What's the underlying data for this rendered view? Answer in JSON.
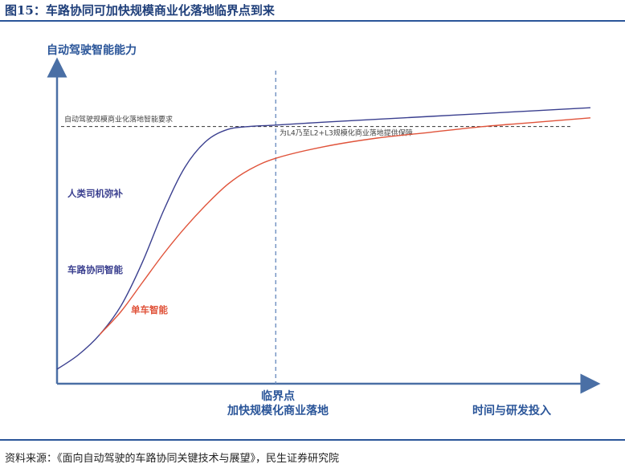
{
  "header": {
    "title": "图15：车路协同可加快规模商业化落地临界点到来"
  },
  "footer": {
    "source": "资料来源：《面向自动驾驶的车路协同关键技术与展望》，民生证券研究院"
  },
  "colors": {
    "axis": "#4a6fa5",
    "vehicle_road": "#3a3f8f",
    "single_vehicle": "#e0533a",
    "annotation_label": "#3a3f8f",
    "single_label": "#e0533a",
    "threshold_line": "#333333"
  },
  "chart_data": {
    "type": "line",
    "title": "",
    "ylabel": "自动驾驶智能能力",
    "xlabel": "时间与研发投入",
    "critical_point_label_line1": "临界点",
    "critical_point_label_line2": "加快规模化商业落地",
    "threshold": {
      "label": "自动驾驶规模商业化落地智能要求",
      "y": 0.84
    },
    "guarantee_note": "为L4乃至L2+L3规模化商业落地提供保障",
    "xlim": [
      0,
      1
    ],
    "ylim": [
      0,
      1
    ],
    "critical_x": 0.41,
    "grid": false,
    "series": [
      {
        "name": "车路协同智能",
        "color": "#3a3f8f",
        "x": [
          0,
          0.04,
          0.08,
          0.12,
          0.16,
          0.2,
          0.24,
          0.28,
          0.32,
          0.36,
          0.41,
          0.5,
          0.6,
          0.7,
          0.8,
          0.9,
          1.0
        ],
        "y": [
          0.0,
          0.05,
          0.12,
          0.22,
          0.37,
          0.55,
          0.7,
          0.79,
          0.83,
          0.84,
          0.845,
          0.855,
          0.865,
          0.875,
          0.885,
          0.895,
          0.905
        ]
      },
      {
        "name": "单车智能",
        "color": "#e0533a",
        "x": [
          0.08,
          0.12,
          0.16,
          0.2,
          0.24,
          0.28,
          0.32,
          0.36,
          0.41,
          0.5,
          0.6,
          0.7,
          0.8,
          0.9,
          1.0
        ],
        "y": [
          0.12,
          0.2,
          0.3,
          0.4,
          0.49,
          0.57,
          0.64,
          0.69,
          0.73,
          0.77,
          0.8,
          0.82,
          0.84,
          0.855,
          0.87
        ]
      }
    ],
    "annotations": [
      "人类司机弥补",
      "车路协同智能",
      "单车智能"
    ]
  }
}
